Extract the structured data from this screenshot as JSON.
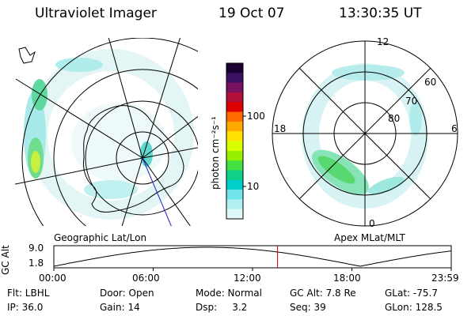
{
  "header": {
    "title": "Ultraviolet Imager",
    "date": "19 Oct 07",
    "time": "13:30:35 UT"
  },
  "colorbar": {
    "unit_label": "photon cm⁻²s⁻¹",
    "ticks": [
      "100",
      "10"
    ],
    "colors": [
      "#1a0030",
      "#3a1060",
      "#7a1060",
      "#b0103a",
      "#e00000",
      "#ff6a00",
      "#ffa800",
      "#ffe000",
      "#d8ff00",
      "#98f000",
      "#44e040",
      "#10d088",
      "#00d0c8",
      "#70e4e8",
      "#b0f0f0",
      "#dff8f8"
    ]
  },
  "left_map": {
    "label": "Geographic Lat/Lon"
  },
  "right_map": {
    "label": "Apex MLat/MLT",
    "mlt_labels": {
      "top": "12",
      "left": "18",
      "right": "6",
      "bottom": "0"
    },
    "lat_labels": [
      "60",
      "70",
      "80"
    ]
  },
  "altitude_plot": {
    "ylabel": "GC Alt",
    "yticks": [
      "9.0",
      "1.8"
    ],
    "xticks": [
      "00:00",
      "06:00",
      "12:00",
      "18:00",
      "23:59"
    ],
    "current_time_hours": 13.51,
    "marker_color": "#cc0000"
  },
  "footer": {
    "row1": [
      "Flt: LBHL",
      "Door: Open",
      "Mode: Normal",
      "GC Alt: 7.8 Re",
      "GLat: -75.7"
    ],
    "row2": [
      "IP: 36.0",
      "Gain: 14",
      "Dsp:     3.2",
      "Seq: 39",
      "GLon: 128.5"
    ]
  }
}
